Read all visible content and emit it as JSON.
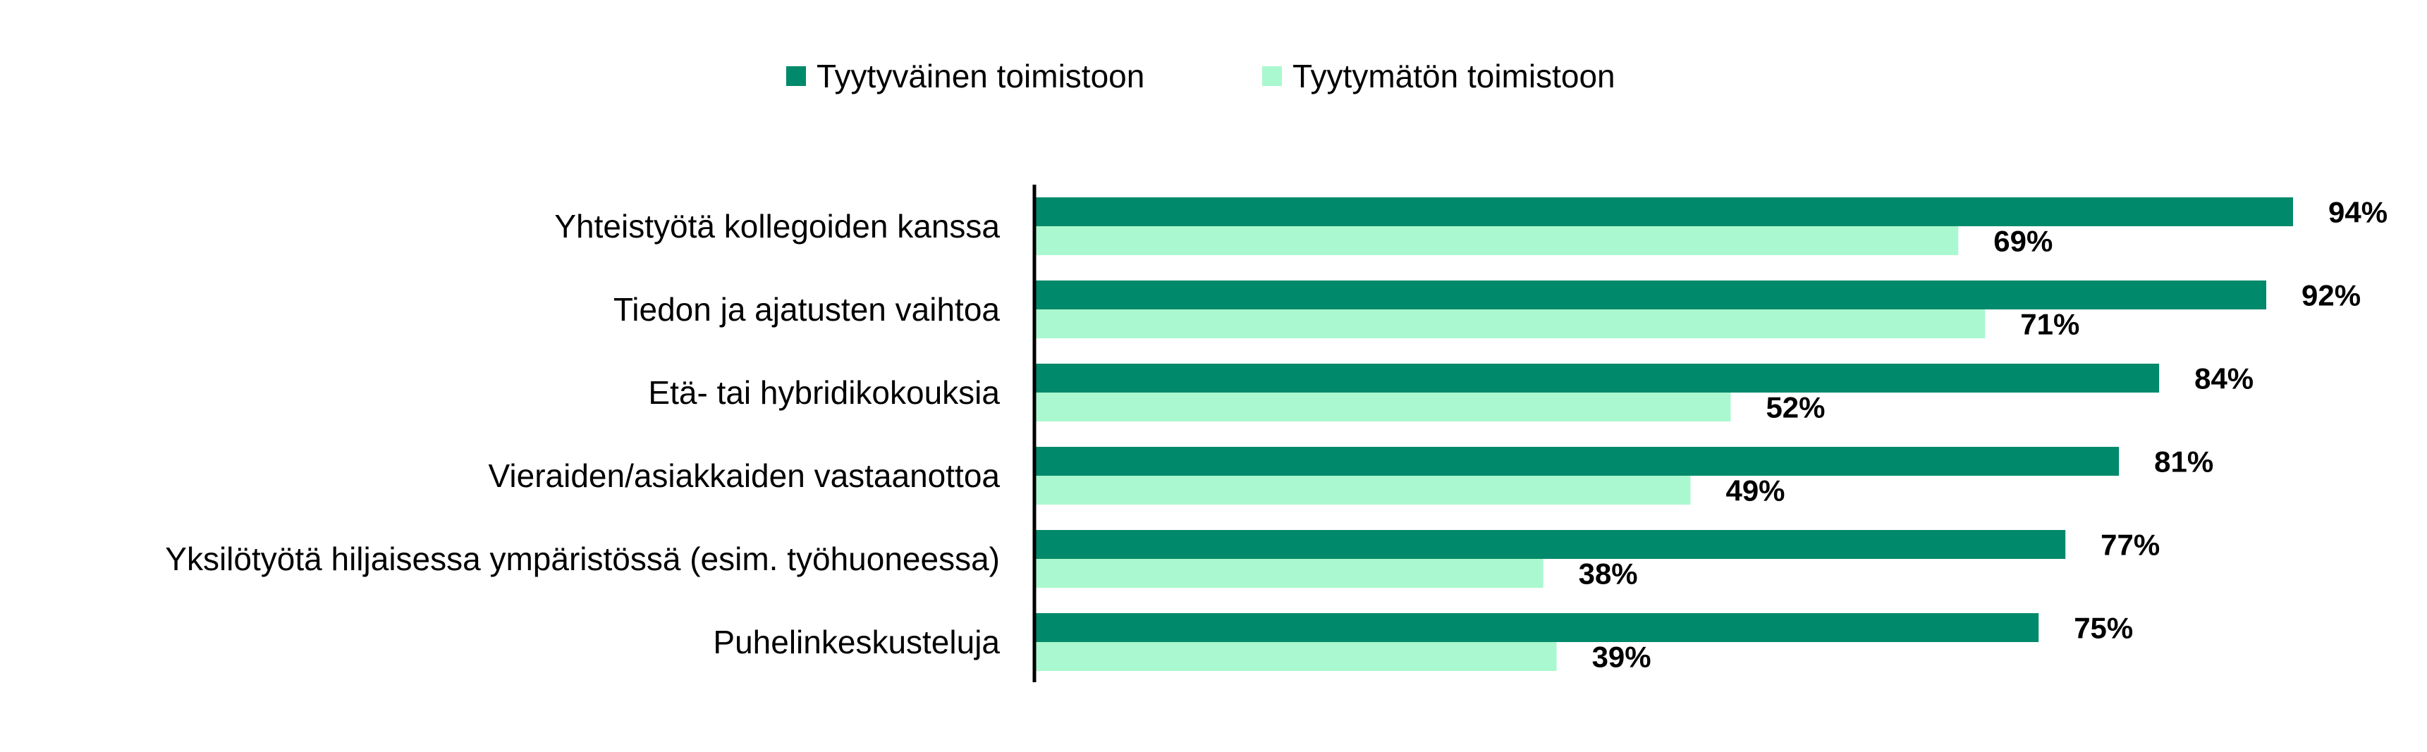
{
  "chart_data": {
    "type": "bar",
    "orientation": "horizontal",
    "categories": [
      "Yhteistyötä kollegoiden kanssa",
      "Tiedon ja ajatusten vaihtoa",
      "Etä- tai hybridikokouksia",
      "Vieraiden/asiakkaiden vastaanottoa",
      "Yksilötyötä hiljaisessa ympäristössä (esim. työhuoneessa)",
      "Puhelinkeskusteluja"
    ],
    "series": [
      {
        "name": "Tyytyväinen toimistoon",
        "color": "#00896A",
        "values": [
          94,
          92,
          84,
          81,
          77,
          75
        ],
        "labels": [
          "94%",
          "92%",
          "84%",
          "81%",
          "77%",
          "75%"
        ]
      },
      {
        "name": "Tyytymätön toimistoon",
        "color": "#AAF8CF",
        "values": [
          69,
          71,
          52,
          49,
          38,
          39
        ],
        "labels": [
          "69%",
          "71%",
          "52%",
          "49%",
          "38%",
          "39%"
        ]
      }
    ],
    "title": "",
    "xlabel": "",
    "ylabel": "",
    "xlim": [
      0,
      100
    ],
    "grid": false,
    "legend": "top",
    "data_labels": true,
    "axis_line_color": "#000000"
  }
}
